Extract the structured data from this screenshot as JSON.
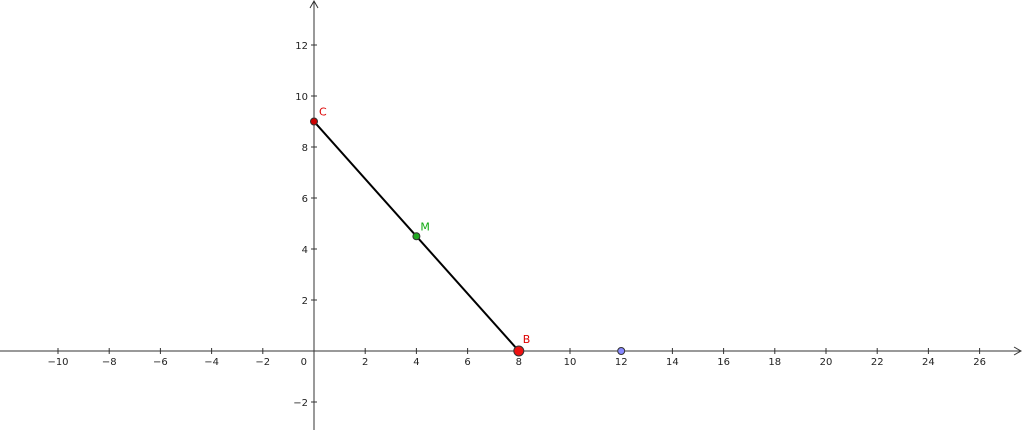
{
  "axes": {
    "x": {
      "min": -12,
      "max": 28,
      "ticks": [
        -10,
        -8,
        -6,
        -4,
        -2,
        2,
        4,
        6,
        8,
        10,
        12,
        14,
        16,
        18,
        20,
        22,
        24,
        26
      ],
      "tick_labels": [
        "−10",
        "−8",
        "−6",
        "−4",
        "−2",
        "2",
        "4",
        "6",
        "8",
        "10",
        "12",
        "14",
        "16",
        "18",
        "20",
        "22",
        "24",
        "26"
      ]
    },
    "y": {
      "min": -3,
      "max": 13.5,
      "ticks": [
        -2,
        2,
        4,
        6,
        8,
        10,
        12
      ],
      "tick_labels": [
        "−2",
        "2",
        "4",
        "6",
        "8",
        "10",
        "12"
      ]
    },
    "origin_label": "0"
  },
  "points": [
    {
      "id": "C",
      "label": "C",
      "x": 0,
      "y": 9,
      "color": "#cc0000",
      "label_color": "#dd0000"
    },
    {
      "id": "M",
      "label": "M",
      "x": 4,
      "y": 4.5,
      "color": "#22aa22",
      "label_color": "#11aa11"
    },
    {
      "id": "B",
      "label": "B",
      "x": 8,
      "y": 0,
      "color": "#ee1111",
      "label_color": "#dd0000"
    },
    {
      "id": "P",
      "label": "",
      "x": 12,
      "y": 0,
      "color": "#8888ff",
      "label_color": "#6666cc"
    }
  ],
  "segments": [
    {
      "from": "C",
      "to": "B",
      "color": "#000000"
    }
  ],
  "colors": {
    "axis": "#333333",
    "segment": "#000000"
  }
}
